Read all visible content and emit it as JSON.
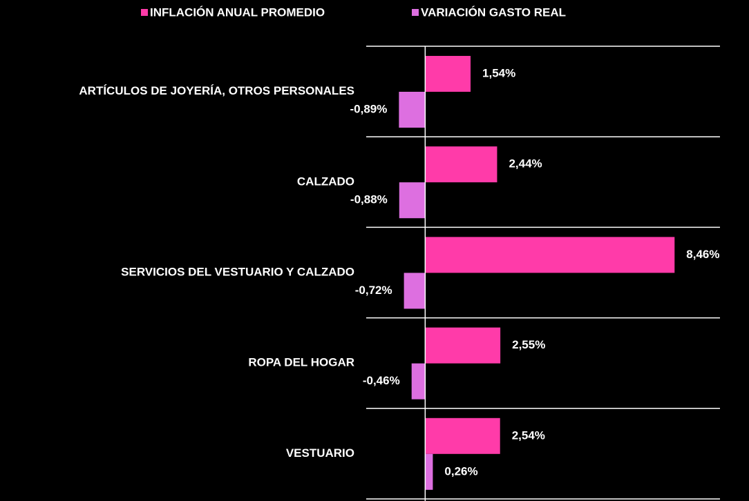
{
  "chart_data": {
    "type": "hbar",
    "categories": [
      "ARTÍCULOS DE JOYERÍA, OTROS PERSONALES",
      "CALZADO",
      "SERVICIOS DEL VESTUARIO Y CALZADO",
      "ROPA DEL HOGAR",
      "VESTUARIO"
    ],
    "series": [
      {
        "name": "INFLACIÓN ANUAL PROMEDIO",
        "color": "#ff3ba9",
        "values": [
          1.54,
          2.44,
          8.46,
          2.55,
          2.54
        ],
        "value_labels": [
          "1,54%",
          "2,44%",
          "8,46%",
          "2,55%",
          "2,54%"
        ]
      },
      {
        "name": "VARIACIÓN GASTO REAL",
        "color": "#dd6fe0",
        "values": [
          -0.89,
          -0.88,
          -0.72,
          -0.46,
          0.26
        ],
        "value_labels": [
          "-0,89%",
          "-0,88%",
          "-0,72%",
          "-0,46%",
          "0,26%"
        ]
      }
    ],
    "xlim": [
      -2,
      10
    ],
    "legend": "top"
  }
}
